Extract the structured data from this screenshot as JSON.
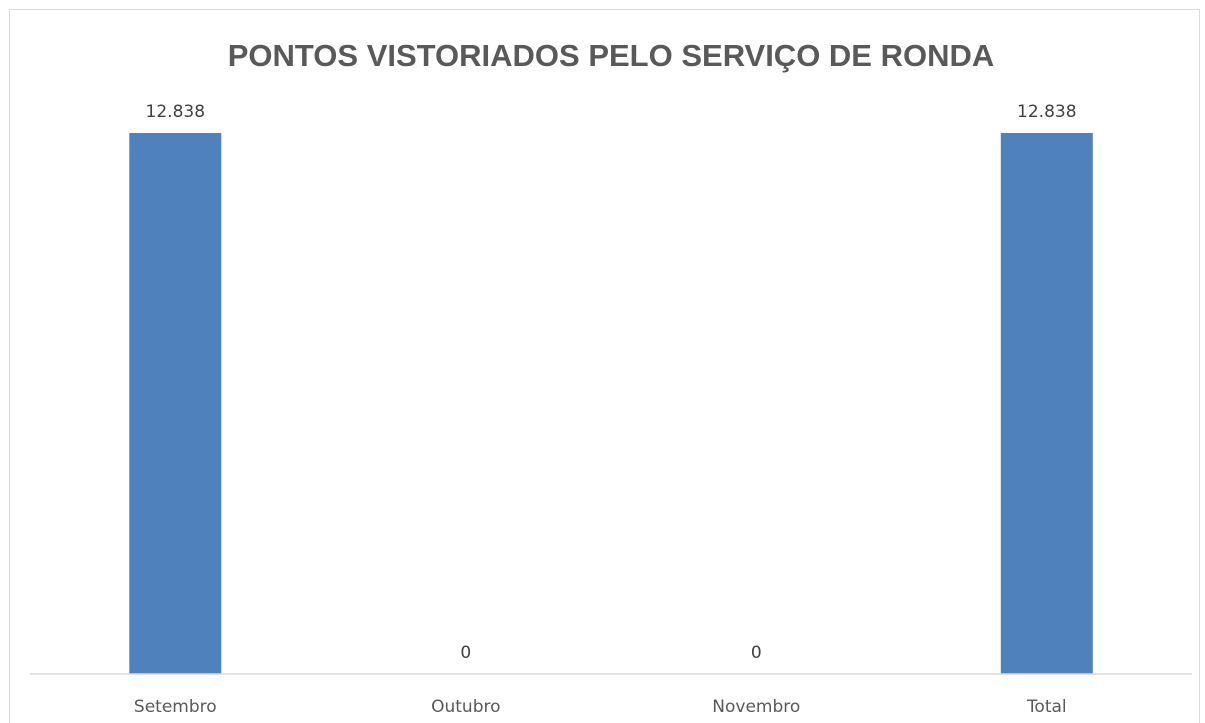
{
  "chart_data": {
    "type": "bar",
    "title": "PONTOS VISTORIADOS PELO SERVIÇO DE RONDA",
    "categories": [
      "Setembro",
      "Outubro",
      "Novembro",
      "Total"
    ],
    "values": [
      12838,
      0,
      0,
      12838
    ],
    "data_labels": [
      "12.838",
      "0",
      "0",
      "12.838"
    ],
    "xlabel": "",
    "ylabel": "",
    "ylim": [
      0,
      12838
    ],
    "grid": false,
    "legend": "none",
    "colors": {
      "bar": "#4f81bd",
      "axis": "#d9d9d9",
      "title": "#595959",
      "text": "#404040"
    }
  }
}
